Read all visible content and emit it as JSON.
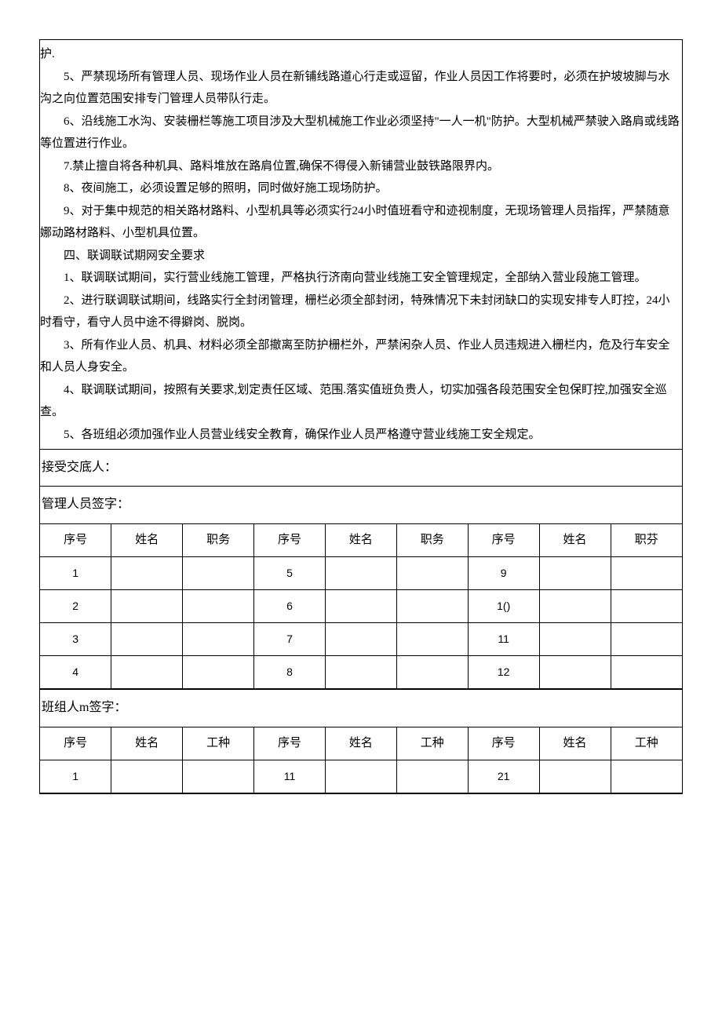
{
  "paragraphs": {
    "p0": "护.",
    "p5": "5、严禁现场所有管理人员、现场作业人员在新铺线路道心行走或逗留，作业人员因工作将要时，必须在护坡坡脚与水沟之向位置范围安排专门管理人员带队行走。",
    "p6": "6、沿线施工水沟、安装栅栏等施工项目涉及大型机械施工作业必须坚持\"一人一机\"防护。大型机械严禁驶入路肩或线路等位置进行作业。",
    "p7": "7.禁止擅自将各种机具、路料堆放在路肩位置,确保不得侵入新铺营业鼓铁路限界内。",
    "p8": "8、夜间施工，必须设置足够的照明，同时做好施工现场防护。",
    "p9": "9、对于集中规范的相关路材路料、小型机具等必须实行24小时值班看守和迹视制度，无现场管理人员指挥，严禁随意娜动路材路料、小型机具位置。",
    "h4": "四、联调联试期网安全要求",
    "q1": "1、联调联试期间，实行营业线施工管理，严格执行济南向营业线施工安全管理规定，全部纳入营业段施工管理。",
    "q2": "2、进行联调联试期间，线路实行全封闭管理，栅栏必须全部封闭，特殊情况下未封闭缺口的实现安排专人盯控，24小时看守，看守人员中途不得擗岗、脱岗。",
    "q3": "3、所有作业人员、机具、材料必须全部撤离至防护栅栏外，严禁闲杂人员、作业人员违规进入栅栏内，危及行车安全和人员人身安全。",
    "q4": "4、联调联试期间，按照有关要求,划定责任区域、范围.落实值班负贵人，切实加强各段范围安全包保盯控,加强安全巡查。",
    "q5": "5、各班组必须加强作业人员营业线安全教育，确保作业人员严格遵守营业线施工安全规定。"
  },
  "labels": {
    "receiver": "接受交底人：",
    "mgmt_sign": "管理人员签字：",
    "team_sign": "班组人m签字："
  },
  "headers": {
    "seq": "序号",
    "name": "姓名",
    "duty": "职务",
    "type": "工种",
    "duty_alt": "职芬"
  },
  "mgmt_table": {
    "rows": [
      {
        "c1": "1",
        "c2": "5",
        "c3": "9"
      },
      {
        "c1": "2",
        "c2": "6",
        "c3": "1()"
      },
      {
        "c1": "3",
        "c2": "7",
        "c3": "11"
      },
      {
        "c1": "4",
        "c2": "8",
        "c3": "12"
      }
    ]
  },
  "team_table": {
    "rows": [
      {
        "c1": "1",
        "c2": "11",
        "c3": "21"
      }
    ]
  }
}
